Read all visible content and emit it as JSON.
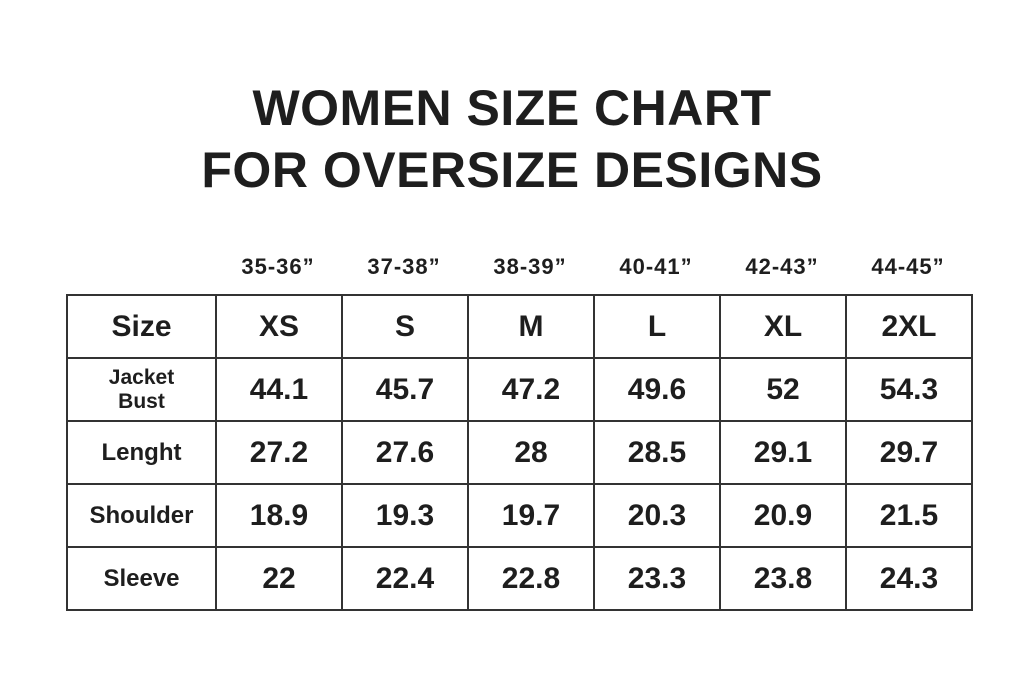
{
  "title": {
    "line1": "WOMEN SIZE CHART",
    "line2": "FOR OVERSIZE DESIGNS"
  },
  "chart_data": {
    "type": "table",
    "title": "WOMEN SIZE CHART FOR OVERSIZE DESIGNS",
    "bust_ranges": [
      "35-36”",
      "37-38”",
      "38-39”",
      "40-41”",
      "42-43”",
      "44-45”"
    ],
    "header_label": "Size",
    "sizes": [
      "XS",
      "S",
      "M",
      "L",
      "XL",
      "2XL"
    ],
    "rows": [
      {
        "label": "Jacket Bust",
        "label_lines": [
          "Jacket",
          "Bust"
        ],
        "values": [
          "44.1",
          "45.7",
          "47.2",
          "49.6",
          "52",
          "54.3"
        ]
      },
      {
        "label": "Lenght",
        "values": [
          "27.2",
          "27.6",
          "28",
          "28.5",
          "29.1",
          "29.7"
        ]
      },
      {
        "label": "Shoulder",
        "values": [
          "18.9",
          "19.3",
          "19.7",
          "20.3",
          "20.9",
          "21.5"
        ]
      },
      {
        "label": "Sleeve",
        "values": [
          "22",
          "22.4",
          "22.8",
          "23.3",
          "23.8",
          "24.3"
        ]
      }
    ]
  }
}
